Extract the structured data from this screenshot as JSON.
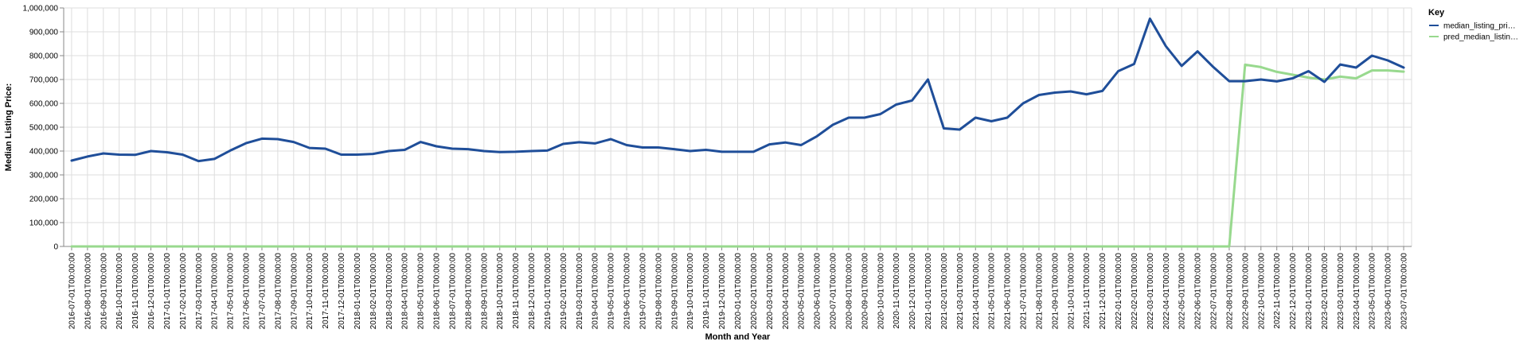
{
  "chart_data": {
    "type": "line",
    "xlabel": "Month and Year",
    "ylabel": "Median Listing Price:",
    "ylim": [
      0,
      1000000
    ],
    "yticks": [
      "0",
      "100,000",
      "200,000",
      "300,000",
      "400,000",
      "500,000",
      "600,000",
      "700,000",
      "800,000",
      "900,000",
      "1,000,000"
    ],
    "ytick_values": [
      0,
      100000,
      200000,
      300000,
      400000,
      500000,
      600000,
      700000,
      800000,
      900000,
      1000000
    ],
    "grid": true,
    "legend": {
      "title": "Key",
      "position": "top-right"
    },
    "x": [
      "2016-07-01T00:00:00",
      "2016-08-01T00:00:00",
      "2016-09-01T00:00:00",
      "2016-10-01T00:00:00",
      "2016-11-01T00:00:00",
      "2016-12-01T00:00:00",
      "2017-01-01T00:00:00",
      "2017-02-01T00:00:00",
      "2017-03-01T00:00:00",
      "2017-04-01T00:00:00",
      "2017-05-01T00:00:00",
      "2017-06-01T00:00:00",
      "2017-07-01T00:00:00",
      "2017-08-01T00:00:00",
      "2017-09-01T00:00:00",
      "2017-10-01T00:00:00",
      "2017-11-01T00:00:00",
      "2017-12-01T00:00:00",
      "2018-01-01T00:00:00",
      "2018-02-01T00:00:00",
      "2018-03-01T00:00:00",
      "2018-04-01T00:00:00",
      "2018-05-01T00:00:00",
      "2018-06-01T00:00:00",
      "2018-07-01T00:00:00",
      "2018-08-01T00:00:00",
      "2018-09-01T00:00:00",
      "2018-10-01T00:00:00",
      "2018-11-01T00:00:00",
      "2018-12-01T00:00:00",
      "2019-01-01T00:00:00",
      "2019-02-01T00:00:00",
      "2019-03-01T00:00:00",
      "2019-04-01T00:00:00",
      "2019-05-01T00:00:00",
      "2019-06-01T00:00:00",
      "2019-07-01T00:00:00",
      "2019-08-01T00:00:00",
      "2019-09-01T00:00:00",
      "2019-10-01T00:00:00",
      "2019-11-01T00:00:00",
      "2019-12-01T00:00:00",
      "2020-01-01T00:00:00",
      "2020-02-01T00:00:00",
      "2020-03-01T00:00:00",
      "2020-04-01T00:00:00",
      "2020-05-01T00:00:00",
      "2020-06-01T00:00:00",
      "2020-07-01T00:00:00",
      "2020-08-01T00:00:00",
      "2020-09-01T00:00:00",
      "2020-10-01T00:00:00",
      "2020-11-01T00:00:00",
      "2020-12-01T00:00:00",
      "2021-01-01T00:00:00",
      "2021-02-01T00:00:00",
      "2021-03-01T00:00:00",
      "2021-04-01T00:00:00",
      "2021-05-01T00:00:00",
      "2021-06-01T00:00:00",
      "2021-07-01T00:00:00",
      "2021-08-01T00:00:00",
      "2021-09-01T00:00:00",
      "2021-10-01T00:00:00",
      "2021-11-01T00:00:00",
      "2021-12-01T00:00:00",
      "2022-01-01T00:00:00",
      "2022-02-01T00:00:00",
      "2022-03-01T00:00:00",
      "2022-04-01T00:00:00",
      "2022-05-01T00:00:00",
      "2022-06-01T00:00:00",
      "2022-07-01T00:00:00",
      "2022-08-01T00:00:00",
      "2022-09-01T00:00:00",
      "2022-10-01T00:00:00",
      "2022-11-01T00:00:00",
      "2022-12-01T00:00:00",
      "2023-01-01T00:00:00",
      "2023-02-01T00:00:00",
      "2023-03-01T00:00:00",
      "2023-04-01T00:00:00",
      "2023-05-01T00:00:00",
      "2023-06-01T00:00:00",
      "2023-07-01T00:00:00"
    ],
    "series": [
      {
        "name": "median_listing_pri…",
        "color": "#1f4e99",
        "values": [
          360000,
          377000,
          390000,
          385000,
          384000,
          400000,
          395000,
          385000,
          358000,
          367000,
          402000,
          433000,
          452000,
          450000,
          438000,
          413000,
          410000,
          385000,
          385000,
          388000,
          400000,
          405000,
          438000,
          420000,
          410000,
          408000,
          400000,
          396000,
          397000,
          400000,
          402000,
          430000,
          437000,
          432000,
          450000,
          425000,
          415000,
          415000,
          408000,
          400000,
          405000,
          397000,
          397000,
          397000,
          428000,
          436000,
          425000,
          462000,
          510000,
          540000,
          540000,
          555000,
          595000,
          612000,
          700000,
          495000,
          490000,
          540000,
          525000,
          540000,
          600000,
          635000,
          645000,
          650000,
          638000,
          652000,
          735000,
          765000,
          955000,
          840000,
          757000,
          818000,
          752000,
          693000,
          693000,
          700000,
          692000,
          705000,
          735000,
          690000,
          763000,
          750000,
          800000,
          780000,
          750000
        ]
      },
      {
        "name": "pred_median_listin…",
        "color": "#98d98e",
        "values": [
          0,
          0,
          0,
          0,
          0,
          0,
          0,
          0,
          0,
          0,
          0,
          0,
          0,
          0,
          0,
          0,
          0,
          0,
          0,
          0,
          0,
          0,
          0,
          0,
          0,
          0,
          0,
          0,
          0,
          0,
          0,
          0,
          0,
          0,
          0,
          0,
          0,
          0,
          0,
          0,
          0,
          0,
          0,
          0,
          0,
          0,
          0,
          0,
          0,
          0,
          0,
          0,
          0,
          0,
          0,
          0,
          0,
          0,
          0,
          0,
          0,
          0,
          0,
          0,
          0,
          0,
          0,
          0,
          0,
          0,
          0,
          0,
          0,
          0,
          762000,
          752000,
          732000,
          720000,
          708000,
          700000,
          712000,
          705000,
          738000,
          738000,
          733000
        ]
      }
    ]
  }
}
